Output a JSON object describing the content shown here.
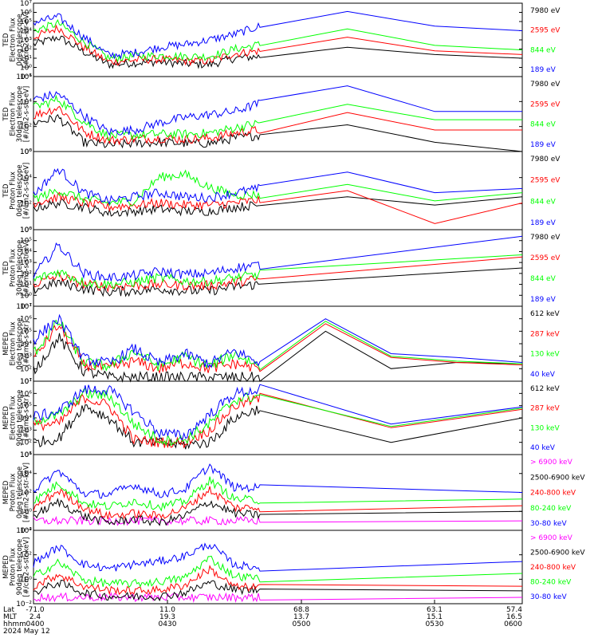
{
  "colors": {
    "black": "#000000",
    "red": "#ff0000",
    "green": "#00ff00",
    "blue": "#0000ff",
    "magenta": "#ff00ff"
  },
  "chart_data": [
    {
      "type": "line",
      "ylabel": [
        "TED",
        "Electron Flux",
        "0deg telescope",
        "[#/cm2-s-str-eV]"
      ],
      "yticks": [
        "10⁻¹",
        "10⁰",
        "10¹",
        "10²",
        "10³",
        "10⁴",
        "10⁵",
        "10⁶",
        "10⁷"
      ],
      "ylim_exp": [
        -1,
        7
      ],
      "series": [
        {
          "name": "7980 eV",
          "color": "black",
          "values": [
            2.5,
            3.3,
            1.7,
            0.3,
            0.5,
            0.6,
            0.4,
            0.3,
            1.0,
            1.2,
            2.2,
            1.4,
            1.0
          ]
        },
        {
          "name": "2595 eV",
          "color": "red",
          "values": [
            3.3,
            4.3,
            2.2,
            0.6,
            0.8,
            0.9,
            0.7,
            0.7,
            1.5,
            1.8,
            3.3,
            1.8,
            1.4
          ]
        },
        {
          "name": "844 eV",
          "color": "green",
          "values": [
            4.0,
            4.8,
            2.8,
            1.0,
            1.2,
            1.3,
            1.2,
            1.2,
            2.0,
            2.5,
            4.2,
            2.4,
            1.9
          ]
        },
        {
          "name": "189 eV",
          "color": "blue",
          "values": [
            4.9,
            5.5,
            3.3,
            1.3,
            1.6,
            2.2,
            2.5,
            3.0,
            3.6,
            4.5,
            6.1,
            4.5,
            4.0
          ]
        }
      ]
    },
    {
      "type": "line",
      "ylabel": [
        "TED",
        "Electron Flux",
        "30deg telescope",
        "[#/cm2-s-str-eV]"
      ],
      "yticks": [
        "10⁰",
        "10²",
        "10⁴",
        "10⁶"
      ],
      "ylim_exp": [
        -0.3,
        7
      ],
      "series": [
        {
          "name": "7980 eV",
          "color": "black",
          "values": [
            2.5,
            3.0,
            0.6,
            0.3,
            0.5,
            0.6,
            0.5,
            0.5,
            1.0,
            1.3,
            2.3,
            0.6,
            -0.3
          ]
        },
        {
          "name": "2595 eV",
          "color": "red",
          "values": [
            3.2,
            4.0,
            1.6,
            0.8,
            0.9,
            1.0,
            0.9,
            1.0,
            1.5,
            1.8,
            3.5,
            1.8,
            1.8
          ]
        },
        {
          "name": "844 eV",
          "color": "green",
          "values": [
            4.0,
            4.8,
            2.6,
            1.2,
            1.3,
            1.4,
            1.4,
            1.5,
            2.0,
            2.5,
            4.3,
            2.8,
            2.8
          ]
        },
        {
          "name": "189 eV",
          "color": "blue",
          "values": [
            4.8,
            5.3,
            3.2,
            1.6,
            1.8,
            2.5,
            3.0,
            3.3,
            3.6,
            4.4,
            6.1,
            3.6,
            3.6
          ]
        }
      ]
    },
    {
      "type": "line",
      "ylabel": [
        "TED",
        "Proton Flux",
        "0deg telescope",
        "[#/cm2-s-str-eV]"
      ],
      "yticks": [
        "10⁰",
        "10²",
        "10⁴",
        "10⁶"
      ],
      "ylim_exp": [
        -0.6,
        7
      ],
      "series": [
        {
          "name": "7980 eV",
          "color": "black",
          "values": [
            1.5,
            2.0,
            1.6,
            1.0,
            1.2,
            1.4,
            1.2,
            1.2,
            1.6,
            1.8,
            2.6,
            1.8,
            2.6
          ]
        },
        {
          "name": "2595 eV",
          "color": "red",
          "values": [
            2.0,
            2.6,
            2.0,
            1.6,
            1.8,
            2.0,
            1.8,
            1.8,
            2.0,
            2.3,
            3.2,
            0.0,
            2.0
          ]
        },
        {
          "name": "844 eV",
          "color": "green",
          "values": [
            2.4,
            3.2,
            2.4,
            2.0,
            2.2,
            4.5,
            4.8,
            3.5,
            2.8,
            2.8,
            3.8,
            2.2,
            3.0
          ]
        },
        {
          "name": "189 eV",
          "color": "blue",
          "values": [
            2.8,
            5.3,
            3.0,
            2.2,
            2.6,
            3.0,
            2.6,
            2.5,
            3.0,
            3.4,
            5.0,
            3.0,
            3.4
          ]
        }
      ]
    },
    {
      "type": "line",
      "ylabel": [
        "TED",
        "Proton Flux",
        "30deg telescope",
        "[#/cm2-s-str-eV]"
      ],
      "yticks": [
        "10⁻¹",
        "10⁰",
        "10¹",
        "10²",
        "10³",
        "10⁴",
        "10⁵",
        "10⁶"
      ],
      "ylim_exp": [
        -1,
        6
      ],
      "series": [
        {
          "name": "7980 eV",
          "color": "black",
          "values": [
            0.5,
            1.2,
            0.6,
            0.3,
            0.4,
            0.6,
            0.4,
            0.4,
            0.8,
            1.0,
            2.5
          ]
        },
        {
          "name": "2595 eV",
          "color": "red",
          "values": [
            1.0,
            1.8,
            1.0,
            0.8,
            0.9,
            1.0,
            0.9,
            0.9,
            1.2,
            1.5,
            3.5
          ]
        },
        {
          "name": "844 eV",
          "color": "green",
          "values": [
            1.4,
            2.2,
            1.2,
            1.0,
            1.2,
            1.6,
            1.3,
            1.3,
            1.6,
            1.9,
            3.7
          ]
        },
        {
          "name": "189 eV",
          "color": "blue",
          "values": [
            1.8,
            4.6,
            2.0,
            1.6,
            1.8,
            2.2,
            1.9,
            2.0,
            2.5,
            2.8,
            5.4
          ]
        }
      ]
    },
    {
      "type": "line",
      "ylabel": [
        "MEPED",
        "Electron Flux",
        "0deg telescope",
        "[#/cm2-s-str]"
      ],
      "yticks": [
        "10¹",
        "10²",
        "10³",
        "10⁴",
        "10⁵",
        "10⁶",
        "10⁷"
      ],
      "ylim_exp": [
        1,
        7
      ],
      "series": [
        {
          "name": "612 keV",
          "color": "black",
          "values": [
            1.8,
            4.5,
            1.8,
            1.3,
            1.3,
            1.3,
            1.3,
            1.3,
            1.3,
            1.3,
            5.0,
            2.0,
            2.5,
            2.4
          ]
        },
        {
          "name": "287 keV",
          "color": "red",
          "values": [
            2.8,
            5.5,
            2.3,
            2.0,
            2.6,
            2.0,
            2.5,
            2.0,
            2.4,
            2.0,
            5.6,
            2.9,
            2.5,
            2.3
          ]
        },
        {
          "name": "130 keV",
          "color": "green",
          "values": [
            3.2,
            5.8,
            2.5,
            2.2,
            3.4,
            2.2,
            3.0,
            2.2,
            3.2,
            2.2,
            5.8,
            3.0,
            2.6,
            2.4
          ]
        },
        {
          "name": "40 keV",
          "color": "blue",
          "values": [
            4.3,
            6.0,
            2.8,
            2.4,
            3.6,
            2.4,
            3.2,
            2.4,
            3.4,
            2.5,
            6.0,
            3.2,
            2.9,
            2.5
          ]
        }
      ]
    },
    {
      "type": "line",
      "ylabel": [
        "MEPED",
        "Electron Flux",
        "90deg telescope",
        "[#/cm2-s-str]"
      ],
      "yticks": [
        "10¹",
        "10²",
        "10³",
        "10⁴",
        "10⁵",
        "10⁶",
        "10⁷"
      ],
      "ylim_exp": [
        1,
        7
      ],
      "series": [
        {
          "name": "612 keV",
          "color": "black",
          "values": [
            2.0,
            2.3,
            5.0,
            4.0,
            2.0,
            2.0,
            1.8,
            2.0,
            4.0,
            4.8,
            2.0,
            4.0
          ]
        },
        {
          "name": "287 keV",
          "color": "red",
          "values": [
            3.4,
            3.5,
            5.7,
            5.0,
            2.2,
            2.0,
            2.0,
            3.0,
            5.0,
            5.6,
            3.2,
            4.7
          ]
        },
        {
          "name": "130 keV",
          "color": "green",
          "values": [
            3.8,
            4.2,
            6.0,
            5.8,
            3.5,
            2.2,
            2.2,
            3.5,
            5.5,
            5.8,
            3.3,
            4.8
          ]
        },
        {
          "name": "40 keV",
          "color": "blue",
          "values": [
            4.1,
            4.5,
            6.3,
            6.3,
            4.5,
            2.8,
            2.5,
            4.3,
            6.0,
            6.3,
            3.5,
            4.9
          ]
        }
      ]
    },
    {
      "type": "line",
      "ylabel": [
        "MEPED",
        "Proton Flux",
        "0deg telescope",
        "[#/cm2-s-str-keV]"
      ],
      "yticks": [
        "10⁻²",
        "10⁰",
        "10²",
        "10⁴",
        "10⁶"
      ],
      "ylim_exp": [
        -2,
        6
      ],
      "series": [
        {
          "name": "> 6900 keV",
          "color": "magenta",
          "values": [
            -1.0,
            -1.0,
            -1.0,
            -1.0,
            -1.0,
            -1.0,
            -1.0,
            -1.0,
            -1.0,
            -1.0,
            -1.0
          ]
        },
        {
          "name": "2500-6900 keV",
          "color": "black",
          "values": [
            -0.5,
            1.0,
            -0.5,
            -1.2,
            -0.8,
            -1.2,
            -0.5,
            1.0,
            -0.2,
            -0.4,
            0.0
          ]
        },
        {
          "name": "240-800 keV",
          "color": "red",
          "values": [
            0.3,
            2.2,
            0.4,
            -0.5,
            -0.2,
            -0.5,
            0.3,
            2.3,
            0.4,
            0.4,
            0.6
          ]
        },
        {
          "name": "80-240 keV",
          "color": "green",
          "values": [
            1.0,
            3.0,
            0.9,
            0.5,
            1.1,
            0.5,
            1.0,
            3.3,
            1.3,
            1.2,
            1.3
          ]
        },
        {
          "name": "30-80 keV",
          "color": "blue",
          "values": [
            2.2,
            4.3,
            1.9,
            1.8,
            2.8,
            1.8,
            2.3,
            4.8,
            2.5,
            2.5,
            2.0
          ]
        }
      ]
    },
    {
      "type": "line",
      "ylabel": [
        "MEPED",
        "Proton Flux",
        "90deg telescope",
        "[#/cm2-s-str-keV]"
      ],
      "yticks": [
        "10⁻²",
        "10⁰",
        "10²",
        "10⁴"
      ],
      "ylim_exp": [
        -2,
        6
      ],
      "series": [
        {
          "name": "> 6900 keV",
          "color": "magenta",
          "values": [
            -1.3,
            -1.3,
            -1.3,
            -1.3,
            -1.3,
            -1.3,
            -1.3,
            -1.3,
            -1.3,
            -1.3,
            -1.3
          ]
        },
        {
          "name": "2500-6900 keV",
          "color": "black",
          "values": [
            -0.8,
            0.3,
            -0.8,
            -1.2,
            -1.2,
            -1.2,
            -0.8,
            0.3,
            -0.5,
            -0.5,
            -0.6
          ]
        },
        {
          "name": "240-800 keV",
          "color": "red",
          "values": [
            -0.1,
            1.2,
            -0.1,
            -0.5,
            -0.6,
            -0.5,
            0.0,
            1.8,
            -0.2,
            -0.2,
            -0.1
          ]
        },
        {
          "name": "80-240 keV",
          "color": "green",
          "values": [
            1.0,
            2.5,
            0.6,
            0.2,
            0.2,
            0.4,
            0.8,
            3.0,
            1.0,
            0.8,
            1.3
          ]
        },
        {
          "name": "30-80 keV",
          "color": "blue",
          "values": [
            2.4,
            4.2,
            2.3,
            1.8,
            2.3,
            2.6,
            3.2,
            4.5,
            2.2,
            2.0,
            2.6
          ]
        }
      ]
    }
  ],
  "x_axis": {
    "row_labels": [
      "Lat",
      "MLT",
      "hhmm",
      "2024 May 12"
    ],
    "ticks": [
      {
        "lat": "-71.0",
        "mlt": "2.4",
        "hhmm": "0400"
      },
      {
        "lat": "11.0",
        "mlt": "19.3",
        "hhmm": "0430"
      },
      {
        "lat": "68.8",
        "mlt": "13.7",
        "hhmm": "0500"
      },
      {
        "lat": "63.1",
        "mlt": "15.1",
        "hhmm": "0530"
      },
      {
        "lat": "57.4",
        "mlt": "16.5",
        "hhmm": "0600"
      }
    ]
  }
}
